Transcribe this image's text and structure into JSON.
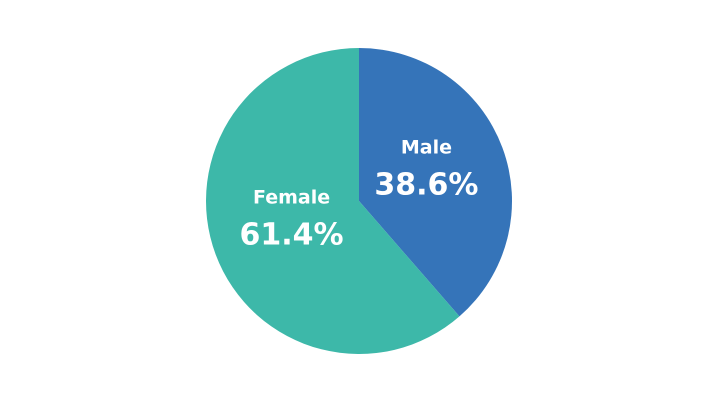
{
  "chart_data": {
    "type": "pie",
    "categories": [
      "Male",
      "Female"
    ],
    "values": [
      38.6,
      61.4
    ],
    "value_labels": [
      "38.6%",
      "61.4%"
    ],
    "colors": [
      "#3574b9",
      "#3db8a9"
    ]
  }
}
